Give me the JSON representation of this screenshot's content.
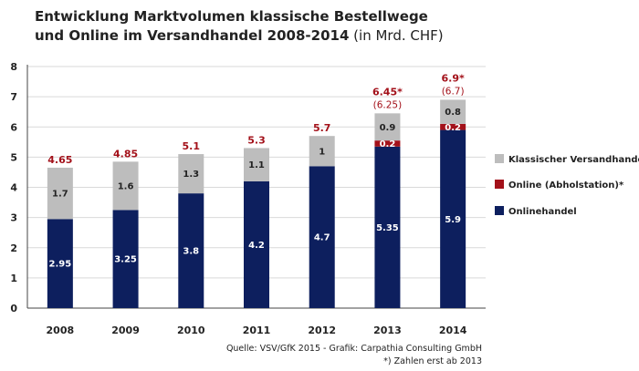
{
  "title_line1": "Entwicklung Marktvolumen klassische Bestellwege",
  "title_line2_bold": "und Online im Versandhandel 2008-2014",
  "title_line2_normal": " (in Mrd. CHF)",
  "source": "Quelle: VSV/GfK 2015 - Grafik: Carpathia Consulting GmbH",
  "footnote": "*) Zahlen erst ab 2013",
  "colors": {
    "online_handel": "#0d1f5e",
    "abholstation": "#a3111a",
    "klassisch": "#bdbdbd",
    "total_label": "#a3111a"
  },
  "chart_data": {
    "type": "bar",
    "stacked": true,
    "categories": [
      "2008",
      "2009",
      "2010",
      "2011",
      "2012",
      "2013",
      "2014"
    ],
    "ylim": [
      0,
      8
    ],
    "yticks": [
      "0",
      "1",
      "2",
      "3",
      "4",
      "5",
      "6",
      "7",
      "8"
    ],
    "grid": true,
    "series": [
      {
        "name": "Onlinehandel",
        "values": [
          2.95,
          3.25,
          3.8,
          4.2,
          4.7,
          5.35,
          5.9
        ],
        "labels": [
          "2.95",
          "3.25",
          "3.8",
          "4.2",
          "4.7",
          "5.35",
          "5.9"
        ]
      },
      {
        "name": "Online (Abholstation)*",
        "values": [
          null,
          null,
          null,
          null,
          null,
          0.2,
          0.2
        ],
        "labels": [
          "",
          "",
          "",
          "",
          "",
          "0.2",
          "0.2"
        ]
      },
      {
        "name": "Klassischer Versandhandel",
        "values": [
          1.7,
          1.6,
          1.3,
          1.1,
          1,
          0.9,
          0.8
        ],
        "labels": [
          "1.7",
          "1.6",
          "1.3",
          "1.1",
          "1",
          "0.9",
          "0.8"
        ]
      }
    ],
    "totals": [
      "4.65",
      "4.85",
      "5.1",
      "5.3",
      "5.7",
      "6.45*",
      "6.9*"
    ],
    "totals_secondary": [
      "",
      "",
      "",
      "",
      "",
      "(6.25)",
      "(6.7)"
    ],
    "legend_order": [
      "Klassischer Versandhandel",
      "Online (Abholstation)*",
      "Onlinehandel"
    ],
    "legend_position": "right"
  }
}
